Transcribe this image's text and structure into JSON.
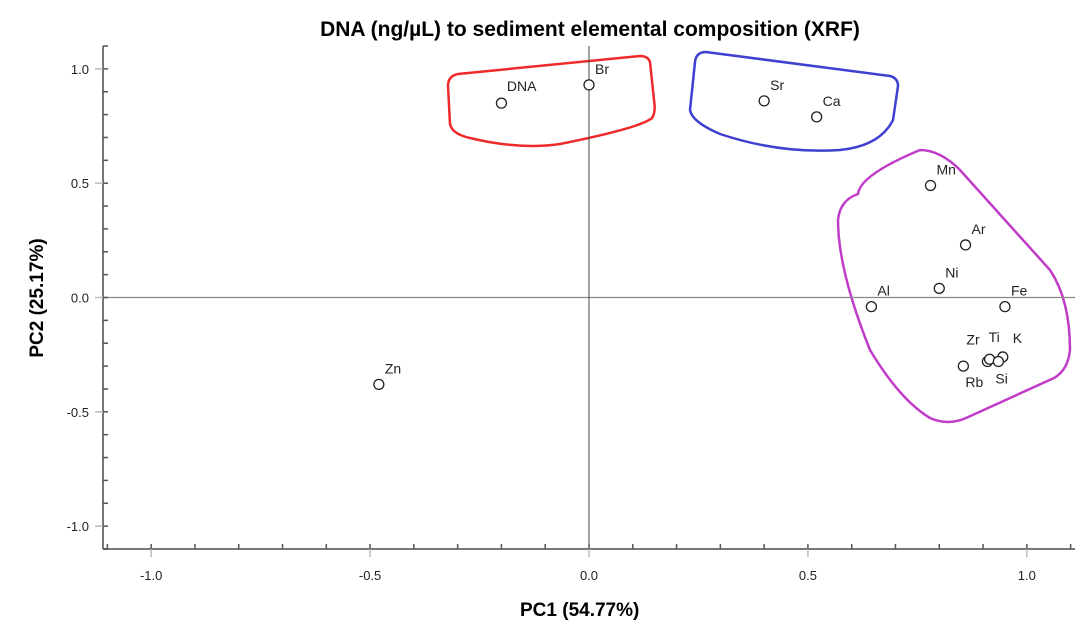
{
  "chart_data": {
    "type": "scatter",
    "title": "DNA (ng/µL) to sediment elemental composition (XRF)",
    "xlabel": "PC1 (54.77%)",
    "ylabel": "PC2 (25.17%)",
    "xlim": [
      -1.11,
      1.11
    ],
    "ylim": [
      -1.1,
      1.1
    ],
    "xticks": [
      -1.0,
      -0.5,
      0.0,
      0.5,
      1.0
    ],
    "xtick_labels": [
      "-1.0",
      "-0.5",
      "0.0",
      "0.5",
      "1.0"
    ],
    "yticks": [
      1.0,
      0.5,
      0.0,
      -0.5,
      -1.0
    ],
    "ytick_labels": [
      "1.0",
      "0.5",
      "0.0",
      "-0.5",
      "-1.0"
    ],
    "grid": false,
    "points": [
      {
        "label": "DNA",
        "x": -0.2,
        "y": 0.85
      },
      {
        "label": "Br",
        "x": 0.0,
        "y": 0.93
      },
      {
        "label": "Sr",
        "x": 0.4,
        "y": 0.86
      },
      {
        "label": "Ca",
        "x": 0.52,
        "y": 0.79
      },
      {
        "label": "Mn",
        "x": 0.78,
        "y": 0.49
      },
      {
        "label": "Ar",
        "x": 0.86,
        "y": 0.23
      },
      {
        "label": "Ni",
        "x": 0.8,
        "y": 0.04
      },
      {
        "label": "Fe",
        "x": 0.95,
        "y": -0.04
      },
      {
        "label": "Al",
        "x": 0.645,
        "y": -0.04
      },
      {
        "label": "Zr",
        "x": 0.91,
        "y": -0.28
      },
      {
        "label": "Ti",
        "x": 0.915,
        "y": -0.27
      },
      {
        "label": "K",
        "x": 0.945,
        "y": -0.26
      },
      {
        "label": "Si",
        "x": 0.935,
        "y": -0.28
      },
      {
        "label": "Rb",
        "x": 0.855,
        "y": -0.3
      },
      {
        "label": "Zn",
        "x": -0.48,
        "y": -0.38
      }
    ],
    "groups": [
      {
        "members": [
          "DNA",
          "Br"
        ],
        "color": "#ee2a2a"
      },
      {
        "members": [
          "Sr",
          "Ca"
        ],
        "color": "#4040d0"
      },
      {
        "members": [
          "Mn",
          "Ar",
          "Ni",
          "Fe",
          "Al",
          "Zr",
          "Ti",
          "K",
          "Si",
          "Rb"
        ],
        "color": "#c03cc8"
      }
    ]
  }
}
